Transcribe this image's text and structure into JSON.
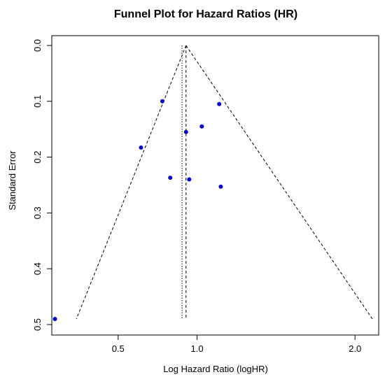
{
  "chart_data": {
    "type": "scatter",
    "title": "Funnel Plot for Hazard Ratios (HR)",
    "xlabel": "Log Hazard Ratio (logHR)",
    "ylabel": "Standard Error",
    "xlim": [
      0.08,
      2.15
    ],
    "ylim": [
      0.0,
      0.5
    ],
    "y_inverted": true,
    "x_ticks": [
      0.5,
      1.0,
      2.0
    ],
    "x_tick_labels": [
      "0.5",
      "1.0",
      "2.0"
    ],
    "y_ticks": [
      0.0,
      0.1,
      0.2,
      0.3,
      0.4,
      0.5
    ],
    "y_tick_labels": [
      "0.0",
      "0.1",
      "0.2",
      "0.3",
      "0.4",
      "0.5"
    ],
    "grid": false,
    "points": [
      {
        "x": 0.78,
        "y": 0.1
      },
      {
        "x": 1.14,
        "y": 0.105
      },
      {
        "x": 1.03,
        "y": 0.145
      },
      {
        "x": 0.93,
        "y": 0.155
      },
      {
        "x": 0.645,
        "y": 0.183
      },
      {
        "x": 0.83,
        "y": 0.237
      },
      {
        "x": 0.95,
        "y": 0.24
      },
      {
        "x": 1.15,
        "y": 0.253
      },
      {
        "x": 0.1,
        "y": 0.49
      }
    ],
    "pooled_estimate": 0.93,
    "reference_line": 0.905,
    "funnel": {
      "apex": {
        "x": 0.93,
        "y": 0.0
      },
      "base": {
        "y": 0.49,
        "x_left": 0.236,
        "x_right": 2.11
      }
    },
    "colors": {
      "points": "#0000cc",
      "lines": "#000000"
    }
  }
}
